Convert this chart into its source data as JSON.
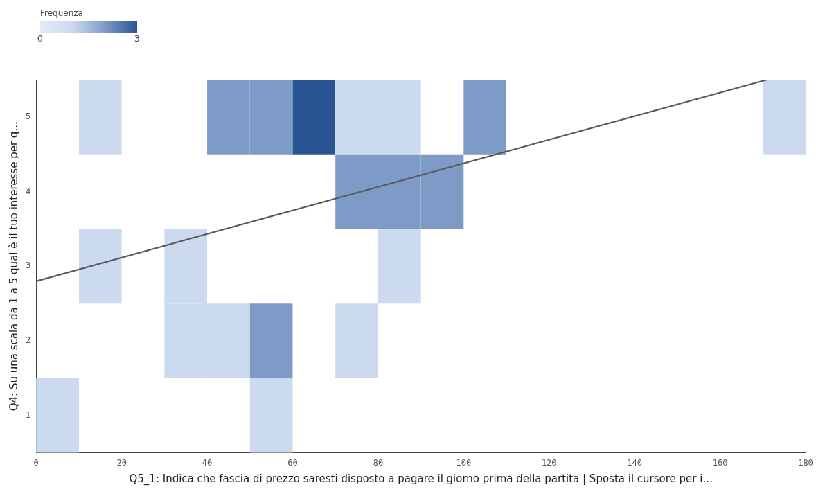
{
  "chart_data": {
    "type": "heatmap",
    "xlabel": "Q5_1: Indica che fascia di prezzo saresti disposto a pagare il giorno prima della partita | Sposta il cursore per i...",
    "ylabel": "Q4: Su una scala da 1 a 5 qual è il tuo interesse per q...",
    "clabel": "Frequenza",
    "x": [
      5,
      15,
      25,
      35,
      45,
      55,
      65,
      75,
      85,
      95,
      105,
      115,
      125,
      135,
      145,
      155,
      165,
      175
    ],
    "y": [
      5,
      4,
      3,
      2,
      1
    ],
    "cells": [
      [
        null,
        1,
        null,
        null,
        2,
        2,
        3,
        1,
        1,
        null,
        2,
        null,
        null,
        null,
        null,
        null,
        null,
        1
      ],
      [
        null,
        null,
        null,
        null,
        null,
        null,
        null,
        2,
        2,
        2,
        null,
        null,
        null,
        null,
        null,
        null,
        null,
        null
      ],
      [
        null,
        1,
        null,
        1,
        null,
        null,
        null,
        null,
        1,
        null,
        null,
        null,
        null,
        null,
        null,
        null,
        null,
        null
      ],
      [
        null,
        null,
        null,
        1,
        1,
        2,
        null,
        1,
        null,
        null,
        null,
        null,
        null,
        null,
        null,
        null,
        null,
        null
      ],
      [
        1,
        null,
        null,
        null,
        null,
        1,
        null,
        null,
        null,
        null,
        null,
        null,
        null,
        null,
        null,
        null,
        null,
        null
      ]
    ],
    "clim": [
      0,
      3
    ],
    "cticks": [
      0,
      3
    ],
    "xlim": [
      0,
      180
    ],
    "xticks": [
      0,
      20,
      40,
      60,
      80,
      100,
      120,
      140,
      160,
      180
    ],
    "ylim": [
      0.5,
      5.5
    ],
    "yticks": [
      1,
      2,
      3,
      4,
      5
    ],
    "series": [
      {
        "type": "line",
        "color": "#5a5a5a",
        "x": [
          0,
          171
        ],
        "values": [
          2.8,
          5.5
        ]
      }
    ],
    "grid": false,
    "legend": false
  }
}
